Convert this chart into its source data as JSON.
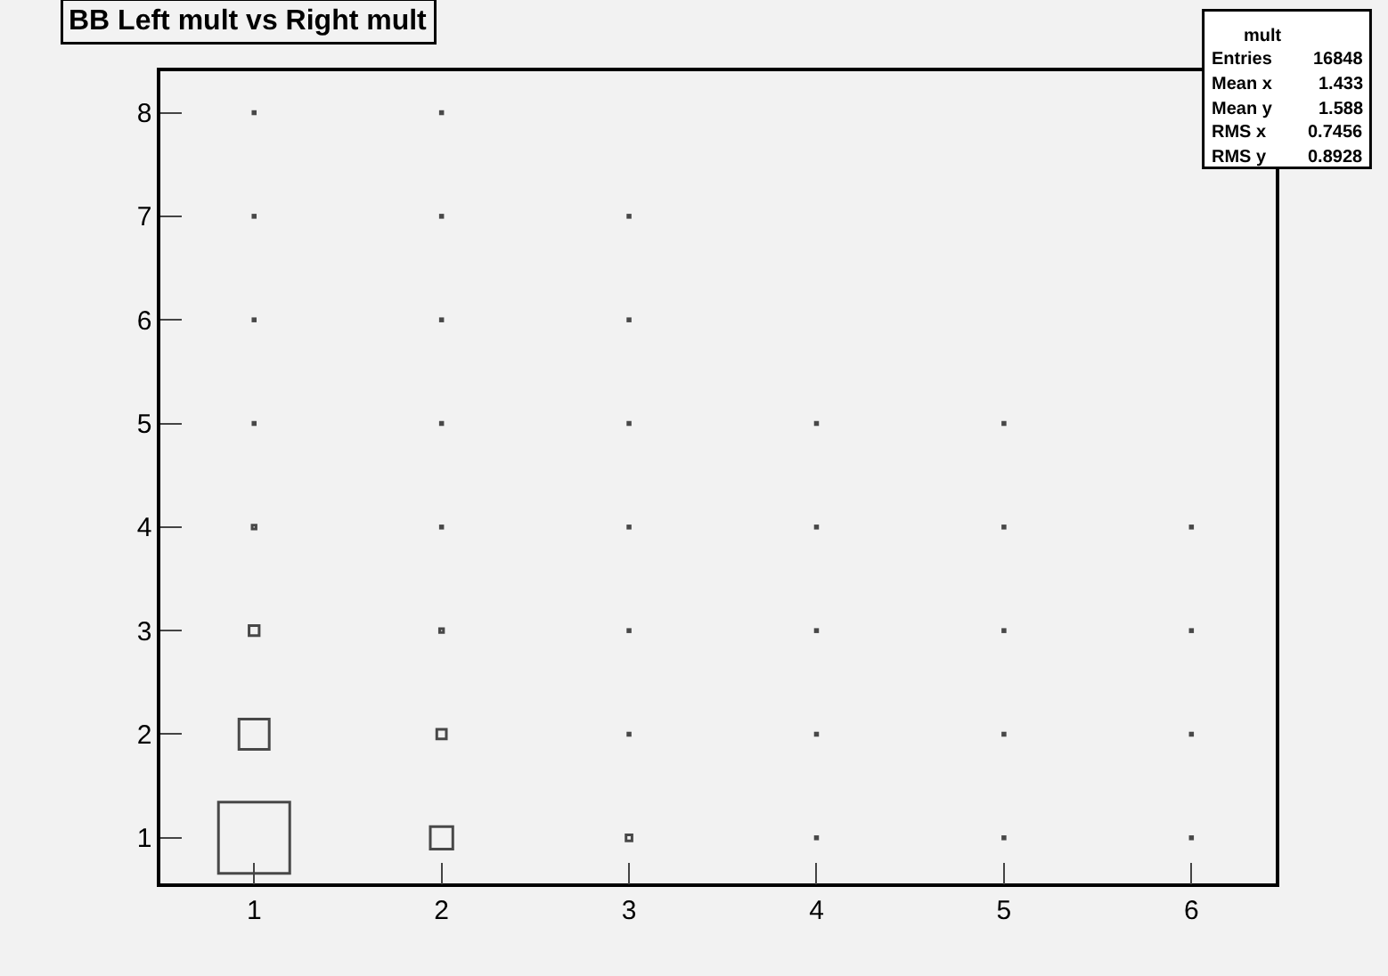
{
  "chart_data": {
    "type": "bubble",
    "title": "BB Left mult vs Right mult",
    "x": [
      1,
      1,
      1,
      1,
      1,
      1,
      1,
      1,
      2,
      2,
      2,
      2,
      2,
      2,
      2,
      2,
      3,
      3,
      3,
      3,
      3,
      3,
      3,
      4,
      4,
      4,
      4,
      4,
      5,
      5,
      5,
      5,
      5,
      6,
      6,
      6,
      6
    ],
    "values": [
      1,
      2,
      3,
      4,
      5,
      6,
      7,
      8,
      1,
      2,
      3,
      4,
      5,
      6,
      7,
      8,
      1,
      2,
      3,
      4,
      5,
      6,
      7,
      1,
      2,
      3,
      4,
      5,
      1,
      2,
      3,
      4,
      5,
      1,
      2,
      3,
      4
    ],
    "sizes": [
      1,
      0.18,
      0.02,
      0.003,
      0.001,
      0.001,
      0.001,
      0.001,
      0.1,
      0.018,
      0.003,
      0.001,
      0.001,
      0.001,
      0.001,
      0.001,
      0.007,
      0.001,
      0.001,
      0.001,
      0.001,
      0.001,
      0.001,
      0.001,
      0.001,
      0.001,
      0.001,
      0.001,
      0.001,
      0.001,
      0.001,
      0.001,
      0.001,
      0.001,
      0.001,
      0.001,
      0.001
    ],
    "color": "#000000",
    "marker": "square",
    "xlim": [
      0.5,
      6.45
    ],
    "ylim": [
      0.56,
      8.4
    ],
    "xticks": [
      1,
      2,
      3,
      4,
      5,
      6
    ],
    "yticks": [
      1,
      2,
      3,
      4,
      5,
      6,
      7,
      8
    ],
    "grid": false,
    "annotations": [
      "mult",
      "Entries\t16848",
      "Mean x\t1.433",
      "Mean y\t1.588",
      "RMS x\t0.7456",
      "RMS y\t0.8928"
    ]
  }
}
